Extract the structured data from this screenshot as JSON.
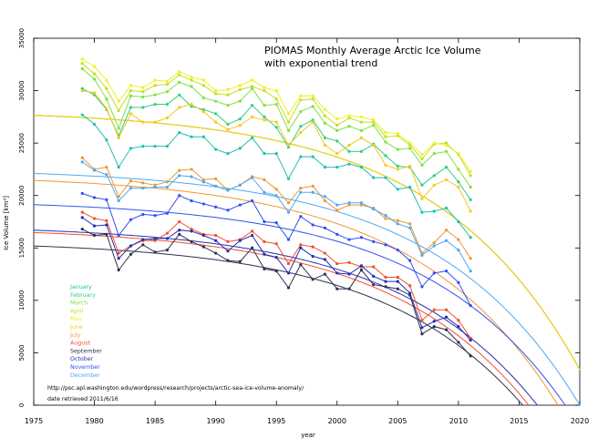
{
  "chart_data": {
    "type": "line",
    "title": "PIOMAS Monthly Average Arctic Ice Volume",
    "subtitle": "with exponential trend",
    "xlabel": "year",
    "ylabel": "Ice Volume [km³]",
    "xlim": [
      1975,
      2020
    ],
    "ylim": [
      0,
      35000
    ],
    "x_ticks": [
      1975,
      1980,
      1985,
      1990,
      1995,
      2000,
      2005,
      2010,
      2015,
      2020
    ],
    "y_ticks": [
      0,
      5000,
      10000,
      15000,
      20000,
      25000,
      30000,
      35000
    ],
    "x_tick_labels": [
      "1975",
      "1980",
      "1985",
      "1990",
      "1995",
      "2000",
      "2005",
      "2010",
      "2015",
      "2020"
    ],
    "y_tick_labels": [
      "0",
      "5000",
      "10000",
      "15000",
      "20000",
      "25000",
      "30000",
      "35000"
    ],
    "legend_position": "bottom-left",
    "annotation_url": "http://psc.apl.washington.edu/wordpress/research/projects/arctic-sea-ice-volume-anomaly/",
    "annotation_date": "date retrieved 2011/6/16",
    "x": [
      1979,
      1980,
      1981,
      1982,
      1983,
      1984,
      1985,
      1986,
      1987,
      1988,
      1989,
      1990,
      1991,
      1992,
      1993,
      1994,
      1995,
      1996,
      1997,
      1998,
      1999,
      2000,
      2001,
      2002,
      2003,
      2004,
      2005,
      2006,
      2007,
      2008,
      2009,
      2010,
      2011
    ],
    "series": [
      {
        "name": "January",
        "color": "#20c0b0",
        "trend_start": 28200,
        "trend_zero": 2021.5,
        "values": [
          27700,
          26800,
          25300,
          22700,
          24500,
          24700,
          24700,
          24700,
          26000,
          25600,
          25600,
          24400,
          24000,
          24500,
          25500,
          24000,
          24000,
          21600,
          23700,
          23700,
          22700,
          22700,
          23000,
          22700,
          21700,
          21700,
          20600,
          20800,
          18400,
          18500,
          18800,
          17500,
          16000
        ]
      },
      {
        "name": "February",
        "color": "#30d080",
        "trend_start": 28200,
        "trend_zero": 2021.5,
        "values": [
          30200,
          29600,
          28200,
          25700,
          28400,
          28400,
          28700,
          28700,
          29600,
          28500,
          28200,
          27800,
          26800,
          27300,
          28600,
          27500,
          26500,
          24600,
          26600,
          27200,
          25500,
          25200,
          24200,
          24200,
          24900,
          23800,
          22800,
          22700,
          21000,
          21900,
          22700,
          21300,
          19600
        ]
      },
      {
        "name": "March",
        "color": "#80e040",
        "trend_start": 28200,
        "trend_zero": 2021.5,
        "values": [
          32100,
          31100,
          29200,
          26400,
          29500,
          29400,
          29600,
          29900,
          30800,
          30400,
          29300,
          29000,
          28600,
          29000,
          30200,
          28600,
          28700,
          26200,
          28000,
          28500,
          26900,
          26200,
          26600,
          26200,
          26700,
          25100,
          24400,
          24500,
          22900,
          24000,
          24200,
          22500,
          20800
        ]
      },
      {
        "name": "April",
        "color": "#c0e020",
        "trend_start": 28200,
        "trend_zero": 2021.5,
        "values": [
          32600,
          31600,
          30200,
          28100,
          30000,
          29900,
          30500,
          30600,
          31500,
          31000,
          30500,
          29700,
          29600,
          30100,
          30400,
          30000,
          29200,
          27000,
          29100,
          29200,
          27600,
          26700,
          27400,
          27000,
          27000,
          25600,
          25700,
          24800,
          23500,
          24900,
          25000,
          23900,
          21900
        ]
      },
      {
        "name": "May",
        "color": "#f0f020",
        "trend_start": 28200,
        "trend_zero": 2021.5,
        "values": [
          33000,
          32300,
          31000,
          29000,
          30500,
          30300,
          31000,
          30900,
          31800,
          31300,
          31000,
          30000,
          30100,
          30500,
          31000,
          30300,
          30000,
          27800,
          29500,
          29500,
          28200,
          27300,
          27600,
          27500,
          27200,
          26000,
          25900,
          25000,
          23900,
          25000,
          24800,
          24000,
          22300
        ]
      },
      {
        "name": "June",
        "color": "#f8c820",
        "trend_start": 28200,
        "trend_zero": 2021.5,
        "values": [
          30000,
          29800,
          28300,
          25500,
          27800,
          27000,
          27000,
          27400,
          28400,
          28700,
          28000,
          27000,
          26300,
          26700,
          27500,
          27200,
          27000,
          24800,
          26000,
          27000,
          24800,
          24000,
          24800,
          25500,
          24800,
          22900,
          22500,
          22800,
          19700,
          21000,
          21500,
          20800,
          18500
        ]
      },
      {
        "name": "July",
        "color": "#f09830",
        "trend_start": 22000,
        "trend_zero": 2018.2,
        "values": [
          23600,
          22500,
          22700,
          19900,
          21400,
          21200,
          21000,
          21300,
          22400,
          22500,
          21500,
          21600,
          20500,
          21000,
          21800,
          21500,
          20600,
          19300,
          20700,
          20900,
          19500,
          18600,
          19100,
          19100,
          18800,
          17800,
          17600,
          17300,
          14500,
          15500,
          16700,
          15800,
          14000
        ]
      },
      {
        "name": "August",
        "color": "#f05030",
        "trend_start": 17000,
        "trend_zero": 2015.8,
        "values": [
          18400,
          17800,
          17600,
          14500,
          15200,
          15700,
          15700,
          16400,
          17500,
          16800,
          16300,
          16200,
          15600,
          15800,
          16600,
          15600,
          15400,
          13500,
          15300,
          15100,
          14500,
          13500,
          13600,
          13200,
          13200,
          12200,
          12200,
          11400,
          8100,
          9100,
          9100,
          8100,
          6400
        ]
      },
      {
        "name": "September",
        "color": "#303050",
        "trend_start": 15700,
        "trend_zero": 2015.3,
        "values": [
          16800,
          16200,
          16300,
          12900,
          14400,
          15300,
          14600,
          14800,
          16300,
          15600,
          15100,
          14500,
          13800,
          13700,
          15000,
          13000,
          12800,
          11200,
          13400,
          12000,
          12500,
          11100,
          11100,
          12900,
          11500,
          11300,
          11100,
          10500,
          6800,
          7500,
          7200,
          6000,
          4700
        ]
      },
      {
        "name": "October",
        "color": "#2030b0",
        "trend_start": 17200,
        "trend_zero": 2016.5,
        "values": [
          17900,
          17100,
          17200,
          14000,
          15200,
          15800,
          15900,
          15900,
          16700,
          16600,
          16200,
          15700,
          14700,
          15700,
          16200,
          14400,
          14100,
          12600,
          15000,
          14200,
          13900,
          12600,
          12500,
          13300,
          12300,
          11800,
          11800,
          10700,
          7400,
          8000,
          8400,
          7500,
          6200
        ]
      },
      {
        "name": "November",
        "color": "#3050f0",
        "trend_start": 19600,
        "trend_zero": 2018.8,
        "values": [
          20200,
          19800,
          19600,
          16200,
          17700,
          18200,
          18100,
          18300,
          20000,
          19500,
          19200,
          18900,
          18600,
          19100,
          19500,
          17500,
          17400,
          15800,
          18000,
          17200,
          16900,
          16300,
          15800,
          16000,
          15600,
          15300,
          14800,
          13800,
          11300,
          12600,
          12800,
          11700,
          9500
        ]
      },
      {
        "name": "December",
        "color": "#50a8f0",
        "trend_start": 22600,
        "trend_zero": 2020.0,
        "values": [
          23200,
          22400,
          22000,
          19500,
          20700,
          20700,
          20800,
          20800,
          21900,
          21800,
          21300,
          20900,
          20500,
          21000,
          21700,
          20300,
          20000,
          18400,
          20300,
          20300,
          19900,
          19100,
          19300,
          19300,
          18700,
          18100,
          17300,
          16900,
          14300,
          15200,
          15700,
          14800,
          12800
        ]
      }
    ]
  }
}
